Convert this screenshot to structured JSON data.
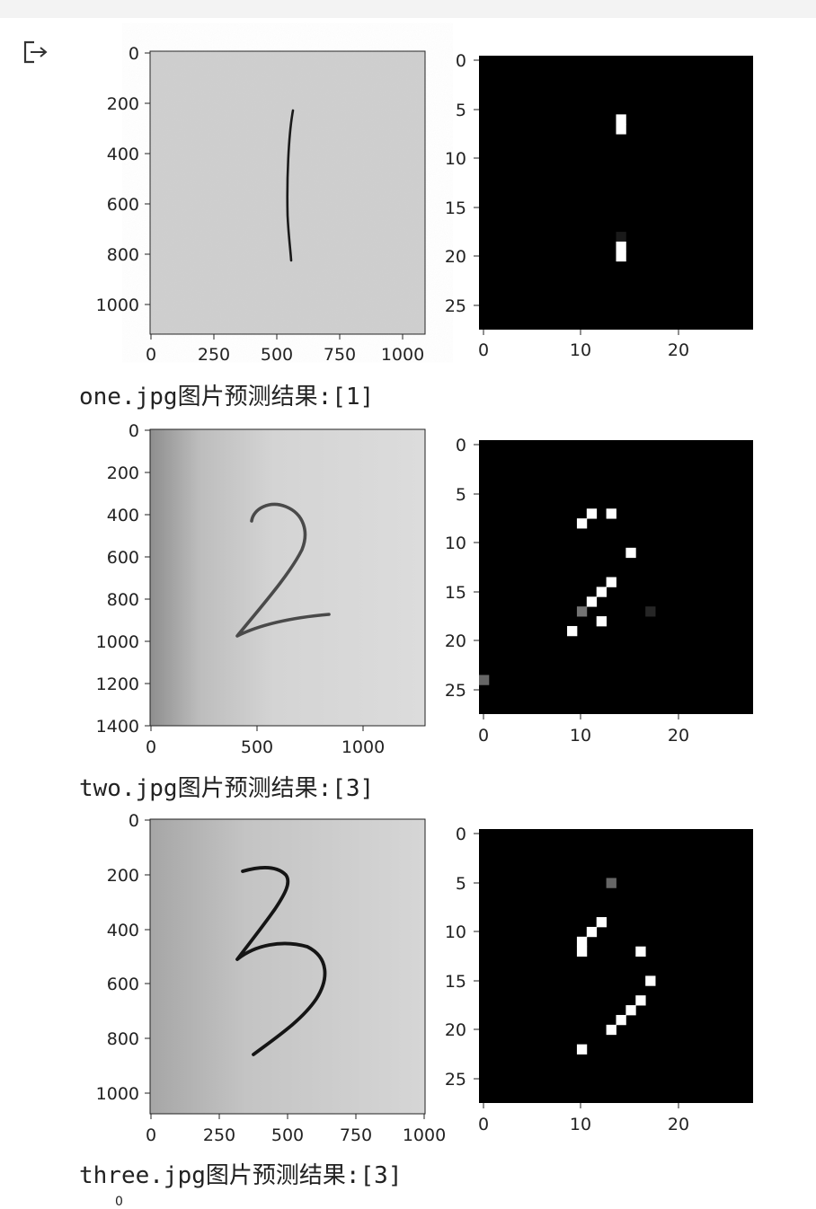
{
  "output": {
    "icon": "output-arrow-icon",
    "results": [
      {
        "caption": "one.jpg图片预测结果:[1]",
        "photo": {
          "y_ticks": [
            "0",
            "200",
            "400",
            "600",
            "800",
            "1000"
          ],
          "x_ticks": [
            "0",
            "250",
            "500",
            "750",
            "1000"
          ],
          "digit": "1"
        },
        "mnist": {
          "y_ticks": [
            "0",
            "5",
            "10",
            "15",
            "20",
            "25"
          ],
          "x_ticks": [
            "0",
            "10",
            "20"
          ],
          "pixels": [
            {
              "col": 14,
              "row": 6,
              "v": 1.0
            },
            {
              "col": 14,
              "row": 7,
              "v": 1.0
            },
            {
              "col": 14,
              "row": 18,
              "v": 0.1
            },
            {
              "col": 14,
              "row": 19,
              "v": 1.0
            },
            {
              "col": 14,
              "row": 20,
              "v": 1.0
            }
          ]
        }
      },
      {
        "caption": "two.jpg图片预测结果:[3]",
        "photo": {
          "y_ticks": [
            "0",
            "200",
            "400",
            "600",
            "800",
            "1000",
            "1200",
            "1400"
          ],
          "x_ticks": [
            "0",
            "500",
            "1000"
          ],
          "digit": "2"
        },
        "mnist": {
          "y_ticks": [
            "0",
            "5",
            "10",
            "15",
            "20",
            "25"
          ],
          "x_ticks": [
            "0",
            "10",
            "20"
          ],
          "pixels": [
            {
              "col": 11,
              "row": 7,
              "v": 1.0
            },
            {
              "col": 13,
              "row": 7,
              "v": 1.0
            },
            {
              "col": 10,
              "row": 8,
              "v": 1.0
            },
            {
              "col": 15,
              "row": 11,
              "v": 1.0
            },
            {
              "col": 13,
              "row": 14,
              "v": 1.0
            },
            {
              "col": 12,
              "row": 15,
              "v": 1.0
            },
            {
              "col": 11,
              "row": 16,
              "v": 1.0
            },
            {
              "col": 10,
              "row": 17,
              "v": 0.45
            },
            {
              "col": 17,
              "row": 17,
              "v": 0.15
            },
            {
              "col": 12,
              "row": 18,
              "v": 1.0
            },
            {
              "col": 9,
              "row": 19,
              "v": 1.0
            },
            {
              "col": 0,
              "row": 24,
              "v": 0.4
            }
          ]
        }
      },
      {
        "caption": "three.jpg图片预测结果:[3]",
        "photo": {
          "y_ticks": [
            "0",
            "200",
            "400",
            "600",
            "800",
            "1000"
          ],
          "x_ticks": [
            "0",
            "250",
            "500",
            "750",
            "1000"
          ],
          "digit": "3"
        },
        "mnist": {
          "y_ticks": [
            "0",
            "5",
            "10",
            "15",
            "20",
            "25"
          ],
          "x_ticks": [
            "0",
            "10",
            "20"
          ],
          "pixels": [
            {
              "col": 13,
              "row": 5,
              "v": 0.4
            },
            {
              "col": 12,
              "row": 9,
              "v": 1.0
            },
            {
              "col": 11,
              "row": 10,
              "v": 1.0
            },
            {
              "col": 10,
              "row": 11,
              "v": 1.0
            },
            {
              "col": 10,
              "row": 12,
              "v": 1.0
            },
            {
              "col": 16,
              "row": 12,
              "v": 1.0
            },
            {
              "col": 17,
              "row": 15,
              "v": 1.0
            },
            {
              "col": 16,
              "row": 17,
              "v": 1.0
            },
            {
              "col": 15,
              "row": 18,
              "v": 1.0
            },
            {
              "col": 14,
              "row": 19,
              "v": 1.0
            },
            {
              "col": 13,
              "row": 20,
              "v": 1.0
            },
            {
              "col": 10,
              "row": 22,
              "v": 1.0
            }
          ]
        }
      }
    ],
    "next_stub": "0"
  }
}
